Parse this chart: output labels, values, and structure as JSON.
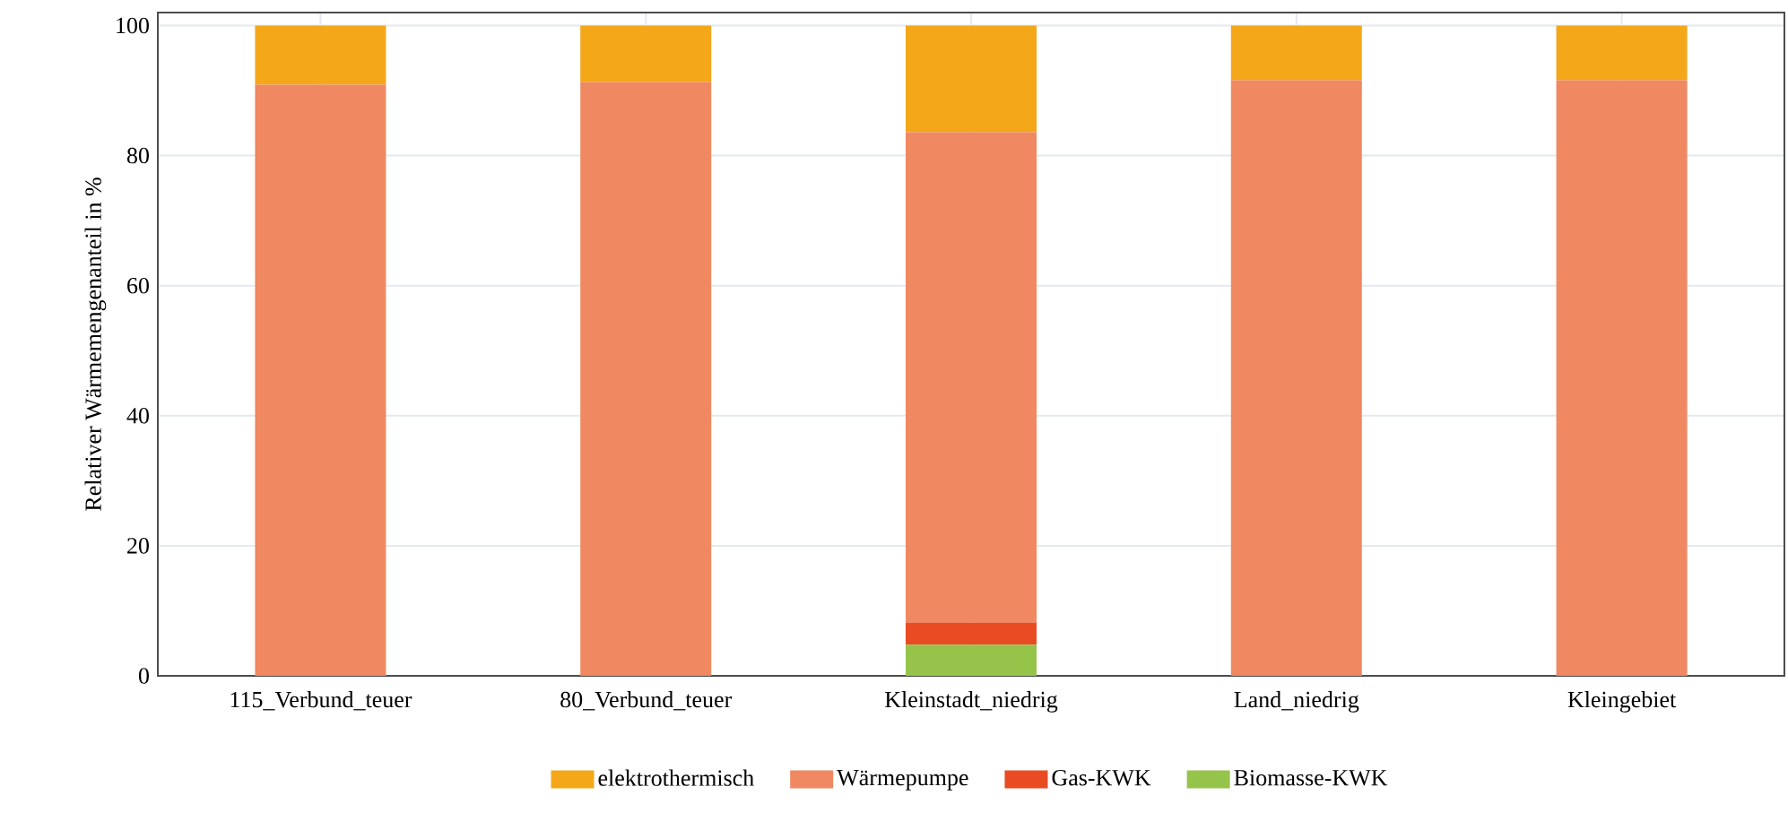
{
  "chart_data": {
    "type": "bar",
    "stacked": true,
    "ylabel": "Relativer Wärmemengenanteil in %",
    "categories": [
      "115_Verbund_teuer",
      "80_Verbund_teuer",
      "Kleinstadt_niedrig",
      "Land_niedrig",
      "Kleingebiet"
    ],
    "series": [
      {
        "name": "Biomasse-KWK",
        "color": "#96c34a",
        "values": [
          0,
          0,
          4.8,
          0,
          0
        ]
      },
      {
        "name": "Gas-KWK",
        "color": "#e94c23",
        "values": [
          0,
          0,
          3.4,
          0,
          0
        ]
      },
      {
        "name": "Wärmepumpe",
        "color": "#f08861",
        "values": [
          90.9,
          91.3,
          75.4,
          91.6,
          91.6
        ]
      },
      {
        "name": "elektrothermisch",
        "color": "#f4a718",
        "values": [
          9.1,
          8.7,
          16.4,
          8.4,
          8.4
        ]
      }
    ],
    "ylim": [
      0,
      102
    ],
    "yticks": [
      0,
      20,
      40,
      60,
      80,
      100
    ],
    "grid": true,
    "legend": "bottom"
  }
}
